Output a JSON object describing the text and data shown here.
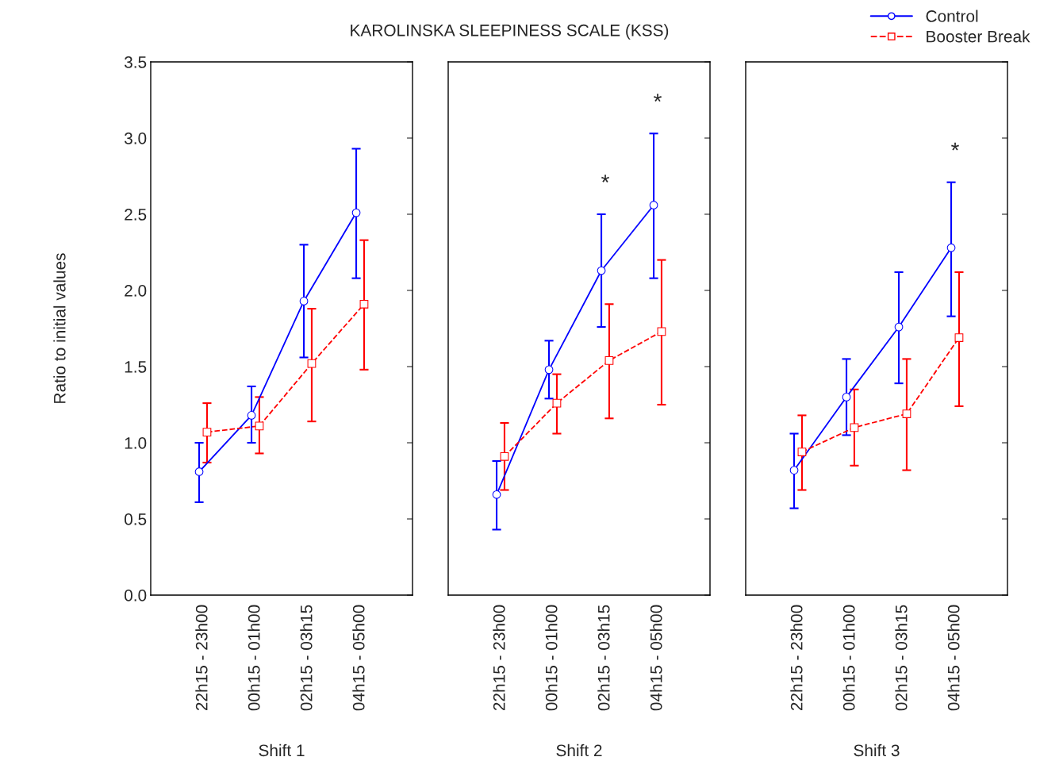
{
  "chart_data": [
    {
      "type": "line",
      "title": "KAROLINSKA SLEEPINESS SCALE (KSS)",
      "ylabel": "Ratio to initial values",
      "xlabel": "Shift 1",
      "categories": [
        "22h15 - 23h00",
        "00h15 - 01h00",
        "02h15 - 03h15",
        "04h15 - 05h00"
      ],
      "ylim": [
        0,
        3.5
      ],
      "yticks": [
        {
          "value": 0,
          "label": "0.0"
        },
        {
          "value": 0.5,
          "label": "0.5"
        },
        {
          "value": 1,
          "label": "1.0"
        },
        {
          "value": 1.5,
          "label": "1.5"
        },
        {
          "value": 2,
          "label": "2.0"
        },
        {
          "value": 2.5,
          "label": "2.5"
        },
        {
          "value": 3,
          "label": "3.0"
        },
        {
          "value": 3.5,
          "label": "3.5"
        }
      ],
      "grid": false,
      "series": [
        {
          "color": "#0000ff",
          "marker": "circle",
          "line_style": "solid",
          "values": [
            0.81,
            1.18,
            1.93,
            2.51
          ],
          "errors": [
            [
              0.61,
              1.0
            ],
            [
              1.0,
              1.37
            ],
            [
              1.56,
              2.3
            ],
            [
              2.08,
              2.93
            ]
          ]
        },
        {
          "color": "#ff0000",
          "marker": "square",
          "line_style": "dashed",
          "values": [
            1.07,
            1.11,
            1.52,
            1.91
          ],
          "errors": [
            [
              0.87,
              1.26
            ],
            [
              0.93,
              1.3
            ],
            [
              1.14,
              1.88
            ],
            [
              1.48,
              2.33
            ]
          ]
        }
      ]
    },
    {
      "type": "line",
      "xlabel": "Shift 2",
      "categories": [
        "22h15 - 23h00",
        "00h15 - 01h00",
        "02h15 - 03h15",
        "04h15 - 05h00"
      ],
      "ylim": [
        0,
        3.5
      ],
      "yticks": [
        {
          "value": 0,
          "label": null
        },
        {
          "value": 0.5,
          "label": null
        },
        {
          "value": 1,
          "label": null
        },
        {
          "value": 1.5,
          "label": null
        },
        {
          "value": 2,
          "label": null
        },
        {
          "value": 2.5,
          "label": null
        },
        {
          "value": 3,
          "label": null
        },
        {
          "value": 3.5,
          "label": null
        }
      ],
      "tick_labels": "x",
      "grid": false,
      "annotations": [
        "*",
        "*"
      ],
      "series": [
        {
          "color": "#0000ff",
          "marker": "circle",
          "line_style": "solid",
          "values": [
            0.66,
            1.48,
            2.13,
            2.56
          ],
          "errors": [
            [
              0.43,
              0.88
            ],
            [
              1.29,
              1.67
            ],
            [
              1.76,
              2.5
            ],
            [
              2.08,
              3.03
            ]
          ]
        },
        {
          "color": "#ff0000",
          "marker": "square",
          "line_style": "dashed",
          "values": [
            0.91,
            1.26,
            1.54,
            1.73
          ],
          "errors": [
            [
              0.69,
              1.13
            ],
            [
              1.06,
              1.45
            ],
            [
              1.16,
              1.91
            ],
            [
              1.25,
              2.2
            ]
          ]
        }
      ]
    },
    {
      "type": "line",
      "xlabel": "Shift 3",
      "categories": [
        "22h15 - 23h00",
        "00h15 - 01h00",
        "02h15 - 03h15",
        "04h15 - 05h00"
      ],
      "ylim": [
        0,
        3.5
      ],
      "yticks": [
        {
          "value": 0,
          "label": null
        },
        {
          "value": 0.5,
          "label": null
        },
        {
          "value": 1,
          "label": null
        },
        {
          "value": 1.5,
          "label": null
        },
        {
          "value": 2,
          "label": null
        },
        {
          "value": 2.5,
          "label": null
        },
        {
          "value": 3,
          "label": null
        },
        {
          "value": 3.5,
          "label": null
        }
      ],
      "tick_labels": "x",
      "grid": false,
      "legend": "top right",
      "annotations": [
        "*"
      ],
      "series": [
        {
          "name": "Control",
          "color": "#0000ff",
          "marker": "circle",
          "line_style": "solid",
          "values": [
            0.82,
            1.3,
            1.76,
            2.28
          ],
          "errors": [
            [
              0.57,
              1.06
            ],
            [
              1.05,
              1.55
            ],
            [
              1.39,
              2.12
            ],
            [
              1.83,
              2.71
            ]
          ]
        },
        {
          "name": "Booster Break",
          "color": "#ff0000",
          "marker": "square",
          "line_style": "dashed",
          "values": [
            0.94,
            1.1,
            1.19,
            1.69
          ],
          "errors": [
            [
              0.69,
              1.18
            ],
            [
              0.85,
              1.35
            ],
            [
              0.82,
              1.55
            ],
            [
              1.24,
              2.12
            ]
          ]
        }
      ]
    }
  ]
}
